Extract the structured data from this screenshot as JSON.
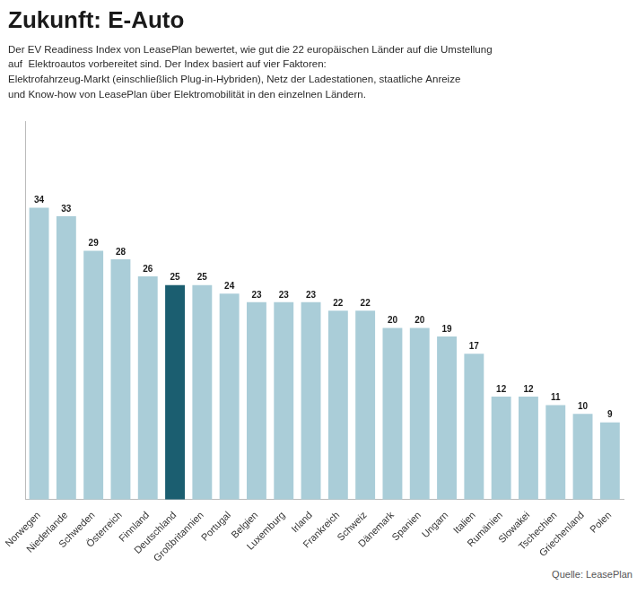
{
  "chart_data": {
    "type": "bar",
    "title": "Zukunft: E-Auto",
    "subtitle": [
      "Der EV Readiness Index von LeasePlan bewertet, wie gut die 22 europäischen Länder auf die Umstellung",
      "auf  Elektroautos vorbereitet sind. Der Index basiert auf vier Faktoren:",
      "Elektrofahrzeug-Markt (einschließlich Plug-in-Hybriden), Netz der Ladestationen, staatliche Anreize",
      "und Know-how von LeasePlan über Elektromobilität in den einzelnen Ländern."
    ],
    "annotations": [
      "Quelle: LeasePlan"
    ],
    "categories": [
      "Norwegen",
      "Niederlande",
      "Schweden",
      "Österreich",
      "Finnland",
      "Deutschland",
      "Großbritannien",
      "Portugal",
      "Belgien",
      "Luxemburg",
      "Irland",
      "Frankreich",
      "Schweiz",
      "Dänemark",
      "Spanien",
      "Ungarn",
      "Italien",
      "Rumänien",
      "Slowakei",
      "Tschechien",
      "Griechenland",
      "Polen"
    ],
    "values": [
      34,
      33,
      29,
      28,
      26,
      25,
      25,
      24,
      23,
      23,
      23,
      22,
      22,
      20,
      20,
      19,
      17,
      12,
      12,
      11,
      10,
      9
    ],
    "colors": [
      "#aacdd8",
      "#aacdd8",
      "#aacdd8",
      "#aacdd8",
      "#aacdd8",
      "#1b5e70",
      "#aacdd8",
      "#aacdd8",
      "#aacdd8",
      "#aacdd8",
      "#aacdd8",
      "#aacdd8",
      "#aacdd8",
      "#aacdd8",
      "#aacdd8",
      "#aacdd8",
      "#aacdd8",
      "#aacdd8",
      "#aacdd8",
      "#aacdd8",
      "#aacdd8",
      "#aacdd8"
    ],
    "ylim": [
      0,
      44
    ],
    "grid": false,
    "data_labels": true,
    "tick_labels": "x"
  }
}
